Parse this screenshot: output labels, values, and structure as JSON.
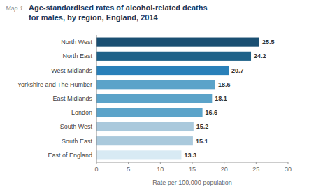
{
  "chart_data": {
    "type": "bar",
    "orientation": "horizontal",
    "title": "Age-standardised rates of alcohol-related deaths\nfor males, by region, England, 2014",
    "annotations": [
      "Map 1"
    ],
    "categories": [
      "North West",
      "North East",
      "West Midlands",
      "Yorkshire and The Humber",
      "East Midlands",
      "London",
      "South West",
      "South East",
      "East of England"
    ],
    "values": [
      25.5,
      24.2,
      20.7,
      18.6,
      18.1,
      16.6,
      15.2,
      15.1,
      13.3
    ],
    "colors": [
      "#1a4f72",
      "#1f6289",
      "#2980b9",
      "#5ba3c9",
      "#5ba3c9",
      "#5ba3c9",
      "#aac9dc",
      "#aac9dc",
      "#d8eaf4"
    ],
    "xlabel": "Rate per 100,000 population",
    "xlim": [
      0,
      30
    ],
    "xticks": [
      0,
      5,
      10,
      15,
      20,
      25,
      30
    ],
    "data_labels": true,
    "grid": false
  }
}
